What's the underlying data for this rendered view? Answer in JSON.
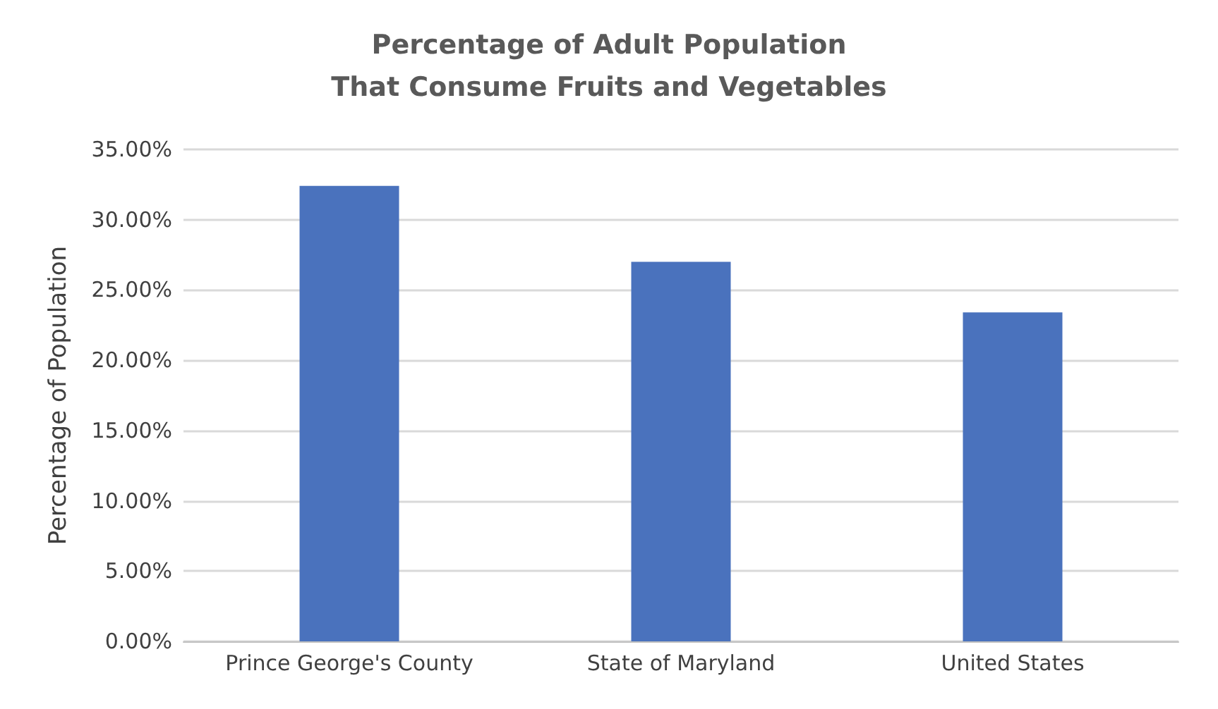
{
  "chart_data": {
    "type": "bar",
    "title": "Percentage of Adult Population\nThat Consume Fruits and Vegetables",
    "ylabel": "Percentage of Population",
    "categories": [
      "Prince George's County",
      "State of Maryland",
      "United States"
    ],
    "values": [
      32.4,
      27.0,
      23.4
    ],
    "color": "#4a72bd",
    "ylim": [
      0,
      35
    ],
    "yticks": [
      {
        "value": 0,
        "label": "0.00%"
      },
      {
        "value": 5,
        "label": "5.00%"
      },
      {
        "value": 10,
        "label": "10.00%"
      },
      {
        "value": 15,
        "label": "15.00%"
      },
      {
        "value": 20,
        "label": "20.00%"
      },
      {
        "value": 25,
        "label": "25.00%"
      },
      {
        "value": 30,
        "label": "30.00%"
      },
      {
        "value": 35,
        "label": "35.00%"
      }
    ],
    "grid": true
  }
}
